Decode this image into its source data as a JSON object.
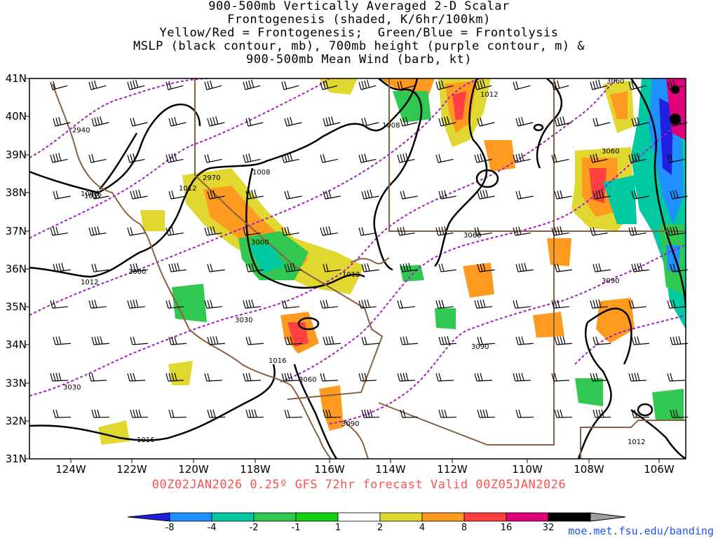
{
  "title": {
    "lines": [
      "900-500mb Vertically Averaged 2-D Scalar",
      "Frontogenesis (shaded, K/6hr/100km)",
      "Yellow/Red = Frontogenesis;  Green/Blue = Frontolysis",
      "MSLP (black contour, mb), 700mb height (purple contour, m) &",
      "900-500mb Mean Wind (barb, kt)"
    ]
  },
  "axes": {
    "latitudes": [
      "41N",
      "40N",
      "39N",
      "38N",
      "37N",
      "36N",
      "35N",
      "34N",
      "33N",
      "32N",
      "31N"
    ],
    "longitudes": [
      "124W",
      "122W",
      "120W",
      "118W",
      "116W",
      "114W",
      "112W",
      "110W",
      "108W",
      "106W"
    ]
  },
  "contour_labels": {
    "mslp": [
      "1012",
      "1008",
      "1008",
      "1012",
      "1008",
      "1012",
      "1012",
      "1012",
      "1016",
      "1016",
      "1012"
    ],
    "height_700mb": [
      "2940",
      "2970",
      "3000",
      "3000",
      "3030",
      "3060",
      "3090",
      "3060",
      "3030",
      "3060",
      "3090",
      "3090",
      "3060"
    ]
  },
  "run_info": "00Z02JAN2026 0.25º GFS 72hr forecast Valid 00Z05JAN2026",
  "colorbar": {
    "labels": [
      "-8",
      "-4",
      "-2",
      "-1",
      "1",
      "2",
      "4",
      "8",
      "16",
      "32"
    ],
    "colors": [
      "#2020e0",
      "#1e90ff",
      "#00c8a0",
      "#30c850",
      "#10d010",
      "#ffffff",
      "#e0d830",
      "#ff9a20",
      "#ff4040",
      "#e0007a",
      "#000000",
      "#a0a0a0"
    ]
  },
  "credit": "moe.met.fsu.edu/banding",
  "colors": {
    "mslp_contour": "#000000",
    "height_contour": "#a020c0",
    "border": "#8b6040",
    "run_info": "#ff5050",
    "credit": "#2050ff"
  }
}
